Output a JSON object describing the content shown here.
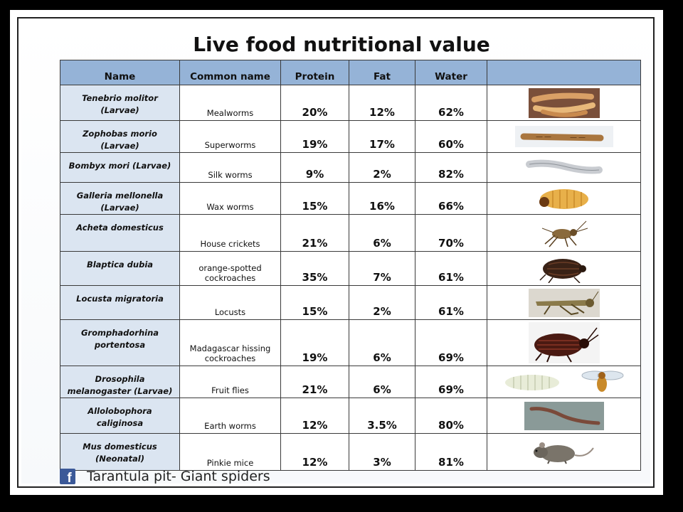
{
  "title": "Live food nutritional value",
  "table": {
    "headers": [
      "Name",
      "Common name",
      "Protein",
      "Fat",
      "Water",
      ""
    ],
    "rows": [
      {
        "name": "Tenebrio molitor (Larvae)",
        "common": "Mealworms",
        "protein": "20%",
        "fat": "12%",
        "water": "62%",
        "image": "mealworm-image"
      },
      {
        "name": "Zophobas morio (Larvae)",
        "common": "Superworms",
        "protein": "19%",
        "fat": "17%",
        "water": "60%",
        "image": "superworm-image"
      },
      {
        "name": "Bombyx mori (Larvae)",
        "common": "Silk worms",
        "protein": "9%",
        "fat": "2%",
        "water": "82%",
        "image": "silkworm-image"
      },
      {
        "name": "Galleria mellonella (Larvae)",
        "common": "Wax worms",
        "protein": "15%",
        "fat": "16%",
        "water": "66%",
        "image": "waxworm-image"
      },
      {
        "name": "Acheta domesticus",
        "common": "House crickets",
        "protein": "21%",
        "fat": "6%",
        "water": "70%",
        "image": "cricket-image"
      },
      {
        "name": "Blaptica dubia",
        "common": "orange-spotted cockroaches",
        "protein": "35%",
        "fat": "7%",
        "water": "61%",
        "image": "dubia-roach-image"
      },
      {
        "name": "Locusta migratoria",
        "common": "Locusts",
        "protein": "15%",
        "fat": "2%",
        "water": "61%",
        "image": "locust-image"
      },
      {
        "name": "Gromphadorhina portentosa",
        "common": "Madagascar hissing cockroaches",
        "protein": "19%",
        "fat": "6%",
        "water": "69%",
        "image": "hissing-roach-image"
      },
      {
        "name": "Drosophila melanogaster (Larvae)",
        "common": "Fruit flies",
        "protein": "21%",
        "fat": "6%",
        "water": "69%",
        "image": "fruit-fly-image"
      },
      {
        "name": "Allolobophora caliginosa",
        "common": "Earth worms",
        "protein": "12%",
        "fat": "3.5%",
        "water": "80%",
        "image": "earthworm-image"
      },
      {
        "name": "Mus domesticus (Neonatal)",
        "common": "Pinkie mice",
        "protein": "12%",
        "fat": "3%",
        "water": "81%",
        "image": "pinkie-mouse-image"
      }
    ]
  },
  "footer": {
    "icon": "facebook-icon",
    "text": "Tarantula pit- Giant spiders"
  },
  "colors": {
    "header_bg": "#95b3d7",
    "name_col_bg": "#dbe5f1",
    "facebook_blue": "#3b5998"
  }
}
